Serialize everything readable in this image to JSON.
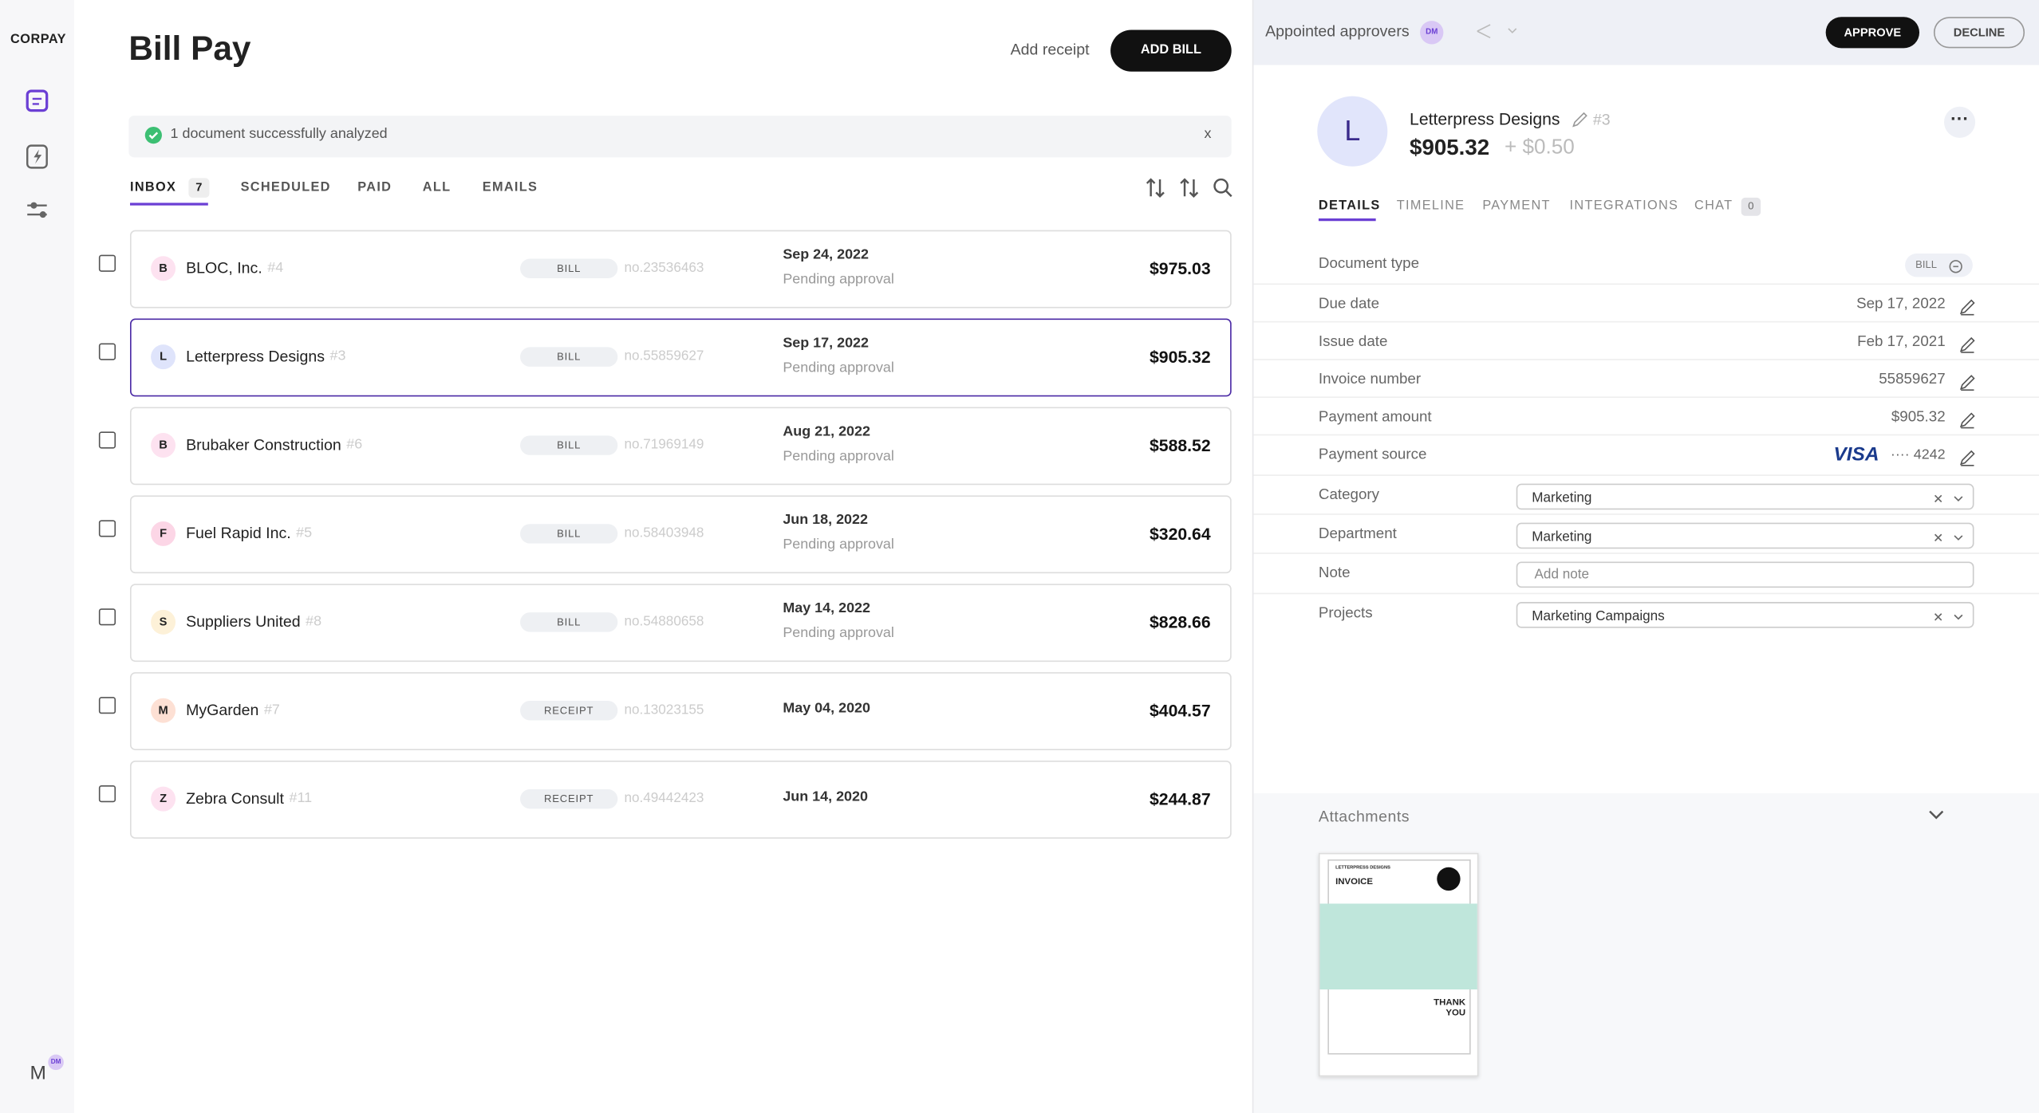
{
  "sidebar": {
    "logo": "CORPAY",
    "user_initial": "M",
    "user_badge": "DM"
  },
  "header": {
    "title": "Bill Pay",
    "add_receipt": "Add receipt",
    "add_bill": "ADD BILL"
  },
  "notice": {
    "text": "1 document successfully analyzed",
    "close": "x"
  },
  "tabs": [
    {
      "label": "INBOX",
      "count": 7
    },
    {
      "label": "SCHEDULED"
    },
    {
      "label": "PAID"
    },
    {
      "label": "ALL"
    },
    {
      "label": "EMAILS"
    }
  ],
  "bills": [
    {
      "initial": "B",
      "name": "BLOC, Inc.",
      "ref": "#4",
      "type": "BILL",
      "number": "no.23536463",
      "date": "Sep 24, 2022",
      "status": "Pending approval",
      "amount": "$975.03"
    },
    {
      "initial": "L",
      "name": "Letterpress Designs",
      "ref": "#3",
      "type": "BILL",
      "number": "no.55859627",
      "date": "Sep 17, 2022",
      "status": "Pending approval",
      "amount": "$905.32"
    },
    {
      "initial": "B",
      "name": "Brubaker Construction",
      "ref": "#6",
      "type": "BILL",
      "number": "no.71969149",
      "date": "Aug 21, 2022",
      "status": "Pending approval",
      "amount": "$588.52"
    },
    {
      "initial": "F",
      "name": "Fuel Rapid Inc.",
      "ref": "#5",
      "type": "BILL",
      "number": "no.58403948",
      "date": "Jun 18, 2022",
      "status": "Pending approval",
      "amount": "$320.64"
    },
    {
      "initial": "S",
      "name": "Suppliers United",
      "ref": "#8",
      "type": "BILL",
      "number": "no.54880658",
      "date": "May 14, 2022",
      "status": "Pending approval",
      "amount": "$828.66"
    },
    {
      "initial": "M",
      "name": "MyGarden",
      "ref": "#7",
      "type": "RECEIPT",
      "number": "no.13023155",
      "date": "May 04, 2020",
      "amount": "$404.57"
    },
    {
      "initial": "Z",
      "name": "Zebra Consult",
      "ref": "#11",
      "type": "RECEIPT",
      "number": "no.49442423",
      "date": "Jun 14, 2020",
      "amount": "$244.87"
    }
  ],
  "detail": {
    "approvers_label": "Appointed approvers",
    "approver_badge": "DM",
    "approve": "APPROVE",
    "decline": "DECLINE",
    "initial": "L",
    "vendor": "Letterpress Designs",
    "ref": "#3",
    "amount": "$905.32",
    "fee": "+ $0.50",
    "tabs": [
      {
        "label": "DETAILS"
      },
      {
        "label": "TIMELINE"
      },
      {
        "label": "PAYMENT"
      },
      {
        "label": "INTEGRATIONS"
      },
      {
        "label": "CHAT",
        "count": 0
      }
    ],
    "fields": [
      {
        "label": "Document type",
        "badge": "BILL"
      },
      {
        "label": "Due date",
        "value": "Sep 17, 2022"
      },
      {
        "label": "Issue date",
        "value": "Feb 17, 2021"
      },
      {
        "label": "Invoice number",
        "value": "55859627"
      },
      {
        "label": "Payment amount",
        "value": "$905.32"
      },
      {
        "label": "Payment source",
        "brand": "VISA",
        "last4": "···· 4242"
      },
      {
        "label": "Category",
        "select": "Marketing"
      },
      {
        "label": "Department",
        "select": "Marketing"
      },
      {
        "label": "Note",
        "placeholder": "Add note"
      },
      {
        "label": "Projects",
        "select": "Marketing Campaigns"
      }
    ],
    "attachments": "Attachments",
    "invoice": {
      "company": "LETTERPRESS DESIGNS",
      "title": "INVOICE",
      "thanks": "THANK YOU"
    }
  }
}
